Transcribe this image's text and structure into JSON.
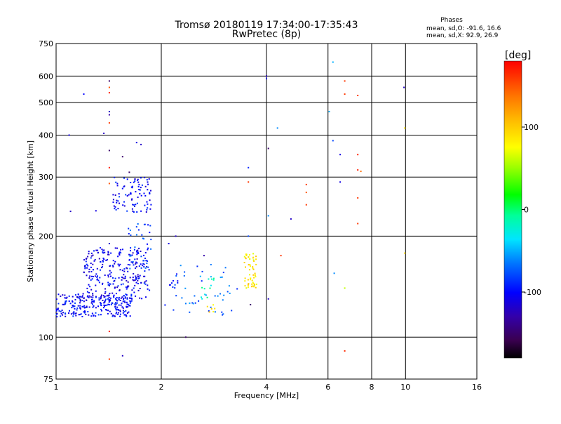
{
  "header": {
    "title_line1": "Tromsø 20180119 17:34:00-17:35:43",
    "title_line2": "RwPretec (8p)",
    "phases_heading": "Phases",
    "phases_o": "mean, sd,O: -91.6, 16.6",
    "phases_x": "mean, sd,X:  92.9, 26.9"
  },
  "colorbar": {
    "unit_label": "[deg]",
    "ticks": [
      {
        "label": "100",
        "value": 100
      },
      {
        "label": "0",
        "value": 0
      },
      {
        "label": "-100",
        "value": -100
      }
    ],
    "range": [
      -180,
      180
    ]
  },
  "chart_data": {
    "type": "scatter",
    "title": "Tromsø 20180119 17:34:00-17:35:43",
    "subtitle": "RwPretec (8p)",
    "xlabel": "Frequency [MHz]",
    "ylabel": "Stationary phase Virtual Height [km]",
    "x_scale": "log",
    "y_scale": "log",
    "xlim": [
      1,
      16
    ],
    "ylim": [
      75,
      750
    ],
    "x_ticks": [
      {
        "label": "1",
        "value": 1
      },
      {
        "label": "2",
        "value": 2
      },
      {
        "label": "4",
        "value": 4
      },
      {
        "label": "6",
        "value": 6
      },
      {
        "label": "8",
        "value": 8
      },
      {
        "label": "10",
        "value": 10
      },
      {
        "label": "16",
        "value": 16
      }
    ],
    "y_ticks": [
      {
        "label": "750",
        "value": 750
      },
      {
        "label": "600",
        "value": 600
      },
      {
        "label": "500",
        "value": 500
      },
      {
        "label": "400",
        "value": 400
      },
      {
        "label": "300",
        "value": 300
      },
      {
        "label": "200",
        "value": 200
      },
      {
        "label": "100",
        "value": 100
      },
      {
        "label": "75",
        "value": 75
      }
    ],
    "grid": true,
    "colorbar_label": "[deg]",
    "clusters": [
      {
        "x_range": [
          1.0,
          1.65
        ],
        "y_range": [
          115,
          135
        ],
        "phase": -100,
        "count": 260
      },
      {
        "x_range": [
          1.2,
          1.85
        ],
        "y_range": [
          130,
          185
        ],
        "phase": -105,
        "count": 260
      },
      {
        "x_range": [
          1.6,
          1.87
        ],
        "y_range": [
          160,
          220
        ],
        "phase": -80,
        "count": 40
      },
      {
        "x_range": [
          1.45,
          1.88
        ],
        "y_range": [
          235,
          300
        ],
        "phase": -100,
        "count": 90
      },
      {
        "x_range": [
          2.05,
          2.25
        ],
        "y_range": [
          120,
          160
        ],
        "phase": -90,
        "count": 14
      },
      {
        "x_range": [
          2.25,
          3.3
        ],
        "y_range": [
          115,
          165
        ],
        "phase": -70,
        "count": 40
      },
      {
        "x_range": [
          2.6,
          2.9
        ],
        "y_range": [
          130,
          150
        ],
        "phase": -20,
        "count": 12
      },
      {
        "x_range": [
          3.45,
          3.75
        ],
        "y_range": [
          140,
          178
        ],
        "phase": 85,
        "count": 55
      },
      {
        "x_range": [
          2.7,
          2.85
        ],
        "y_range": [
          117,
          125
        ],
        "phase": 95,
        "count": 6
      }
    ],
    "points": [
      {
        "x": 1.09,
        "y": 400,
        "phase": -110
      },
      {
        "x": 1.1,
        "y": 237,
        "phase": -120
      },
      {
        "x": 1.2,
        "y": 530,
        "phase": -100
      },
      {
        "x": 1.3,
        "y": 238,
        "phase": -110
      },
      {
        "x": 1.37,
        "y": 405,
        "phase": -120
      },
      {
        "x": 1.42,
        "y": 580,
        "phase": -150
      },
      {
        "x": 1.42,
        "y": 555,
        "phase": 150
      },
      {
        "x": 1.42,
        "y": 535,
        "phase": 170
      },
      {
        "x": 1.42,
        "y": 470,
        "phase": -120
      },
      {
        "x": 1.42,
        "y": 460,
        "phase": -130
      },
      {
        "x": 1.42,
        "y": 435,
        "phase": 160
      },
      {
        "x": 1.42,
        "y": 360,
        "phase": -150
      },
      {
        "x": 1.42,
        "y": 320,
        "phase": 170
      },
      {
        "x": 1.42,
        "y": 287,
        "phase": 150
      },
      {
        "x": 1.42,
        "y": 190,
        "phase": -120
      },
      {
        "x": 1.42,
        "y": 104,
        "phase": 170
      },
      {
        "x": 1.42,
        "y": 86,
        "phase": 160
      },
      {
        "x": 1.55,
        "y": 88,
        "phase": -120
      },
      {
        "x": 1.55,
        "y": 345,
        "phase": -150
      },
      {
        "x": 1.62,
        "y": 310,
        "phase": -150
      },
      {
        "x": 1.7,
        "y": 380,
        "phase": -110
      },
      {
        "x": 1.75,
        "y": 375,
        "phase": -120
      },
      {
        "x": 2.1,
        "y": 190,
        "phase": -110
      },
      {
        "x": 2.35,
        "y": 100,
        "phase": -150
      },
      {
        "x": 2.2,
        "y": 200,
        "phase": -120
      },
      {
        "x": 2.65,
        "y": 175,
        "phase": -130
      },
      {
        "x": 3.55,
        "y": 320,
        "phase": -90
      },
      {
        "x": 3.55,
        "y": 290,
        "phase": 160
      },
      {
        "x": 3.55,
        "y": 200,
        "phase": -80
      },
      {
        "x": 3.6,
        "y": 125,
        "phase": -150
      },
      {
        "x": 4.0,
        "y": 600,
        "phase": -120
      },
      {
        "x": 4.0,
        "y": 590,
        "phase": -110
      },
      {
        "x": 4.05,
        "y": 365,
        "phase": -150
      },
      {
        "x": 4.05,
        "y": 230,
        "phase": -60
      },
      {
        "x": 4.05,
        "y": 130,
        "phase": -120
      },
      {
        "x": 4.3,
        "y": 420,
        "phase": -60
      },
      {
        "x": 4.4,
        "y": 175,
        "phase": 160
      },
      {
        "x": 4.7,
        "y": 225,
        "phase": -120
      },
      {
        "x": 5.2,
        "y": 285,
        "phase": 160
      },
      {
        "x": 5.2,
        "y": 270,
        "phase": 150
      },
      {
        "x": 5.2,
        "y": 248,
        "phase": 160
      },
      {
        "x": 6.05,
        "y": 470,
        "phase": -50
      },
      {
        "x": 6.2,
        "y": 660,
        "phase": -50
      },
      {
        "x": 6.2,
        "y": 385,
        "phase": -80
      },
      {
        "x": 6.25,
        "y": 155,
        "phase": -60
      },
      {
        "x": 6.5,
        "y": 350,
        "phase": -110
      },
      {
        "x": 6.5,
        "y": 290,
        "phase": -110
      },
      {
        "x": 6.7,
        "y": 580,
        "phase": 160
      },
      {
        "x": 6.7,
        "y": 530,
        "phase": 160
      },
      {
        "x": 6.7,
        "y": 140,
        "phase": 60
      },
      {
        "x": 6.7,
        "y": 91,
        "phase": 165
      },
      {
        "x": 7.3,
        "y": 525,
        "phase": 160
      },
      {
        "x": 7.3,
        "y": 350,
        "phase": 170
      },
      {
        "x": 7.3,
        "y": 315,
        "phase": 170
      },
      {
        "x": 7.3,
        "y": 260,
        "phase": 160
      },
      {
        "x": 7.3,
        "y": 218,
        "phase": 160
      },
      {
        "x": 7.45,
        "y": 312,
        "phase": 140
      },
      {
        "x": 9.9,
        "y": 555,
        "phase": -120
      },
      {
        "x": 9.95,
        "y": 420,
        "phase": 90
      },
      {
        "x": 9.95,
        "y": 178,
        "phase": 95
      }
    ]
  }
}
